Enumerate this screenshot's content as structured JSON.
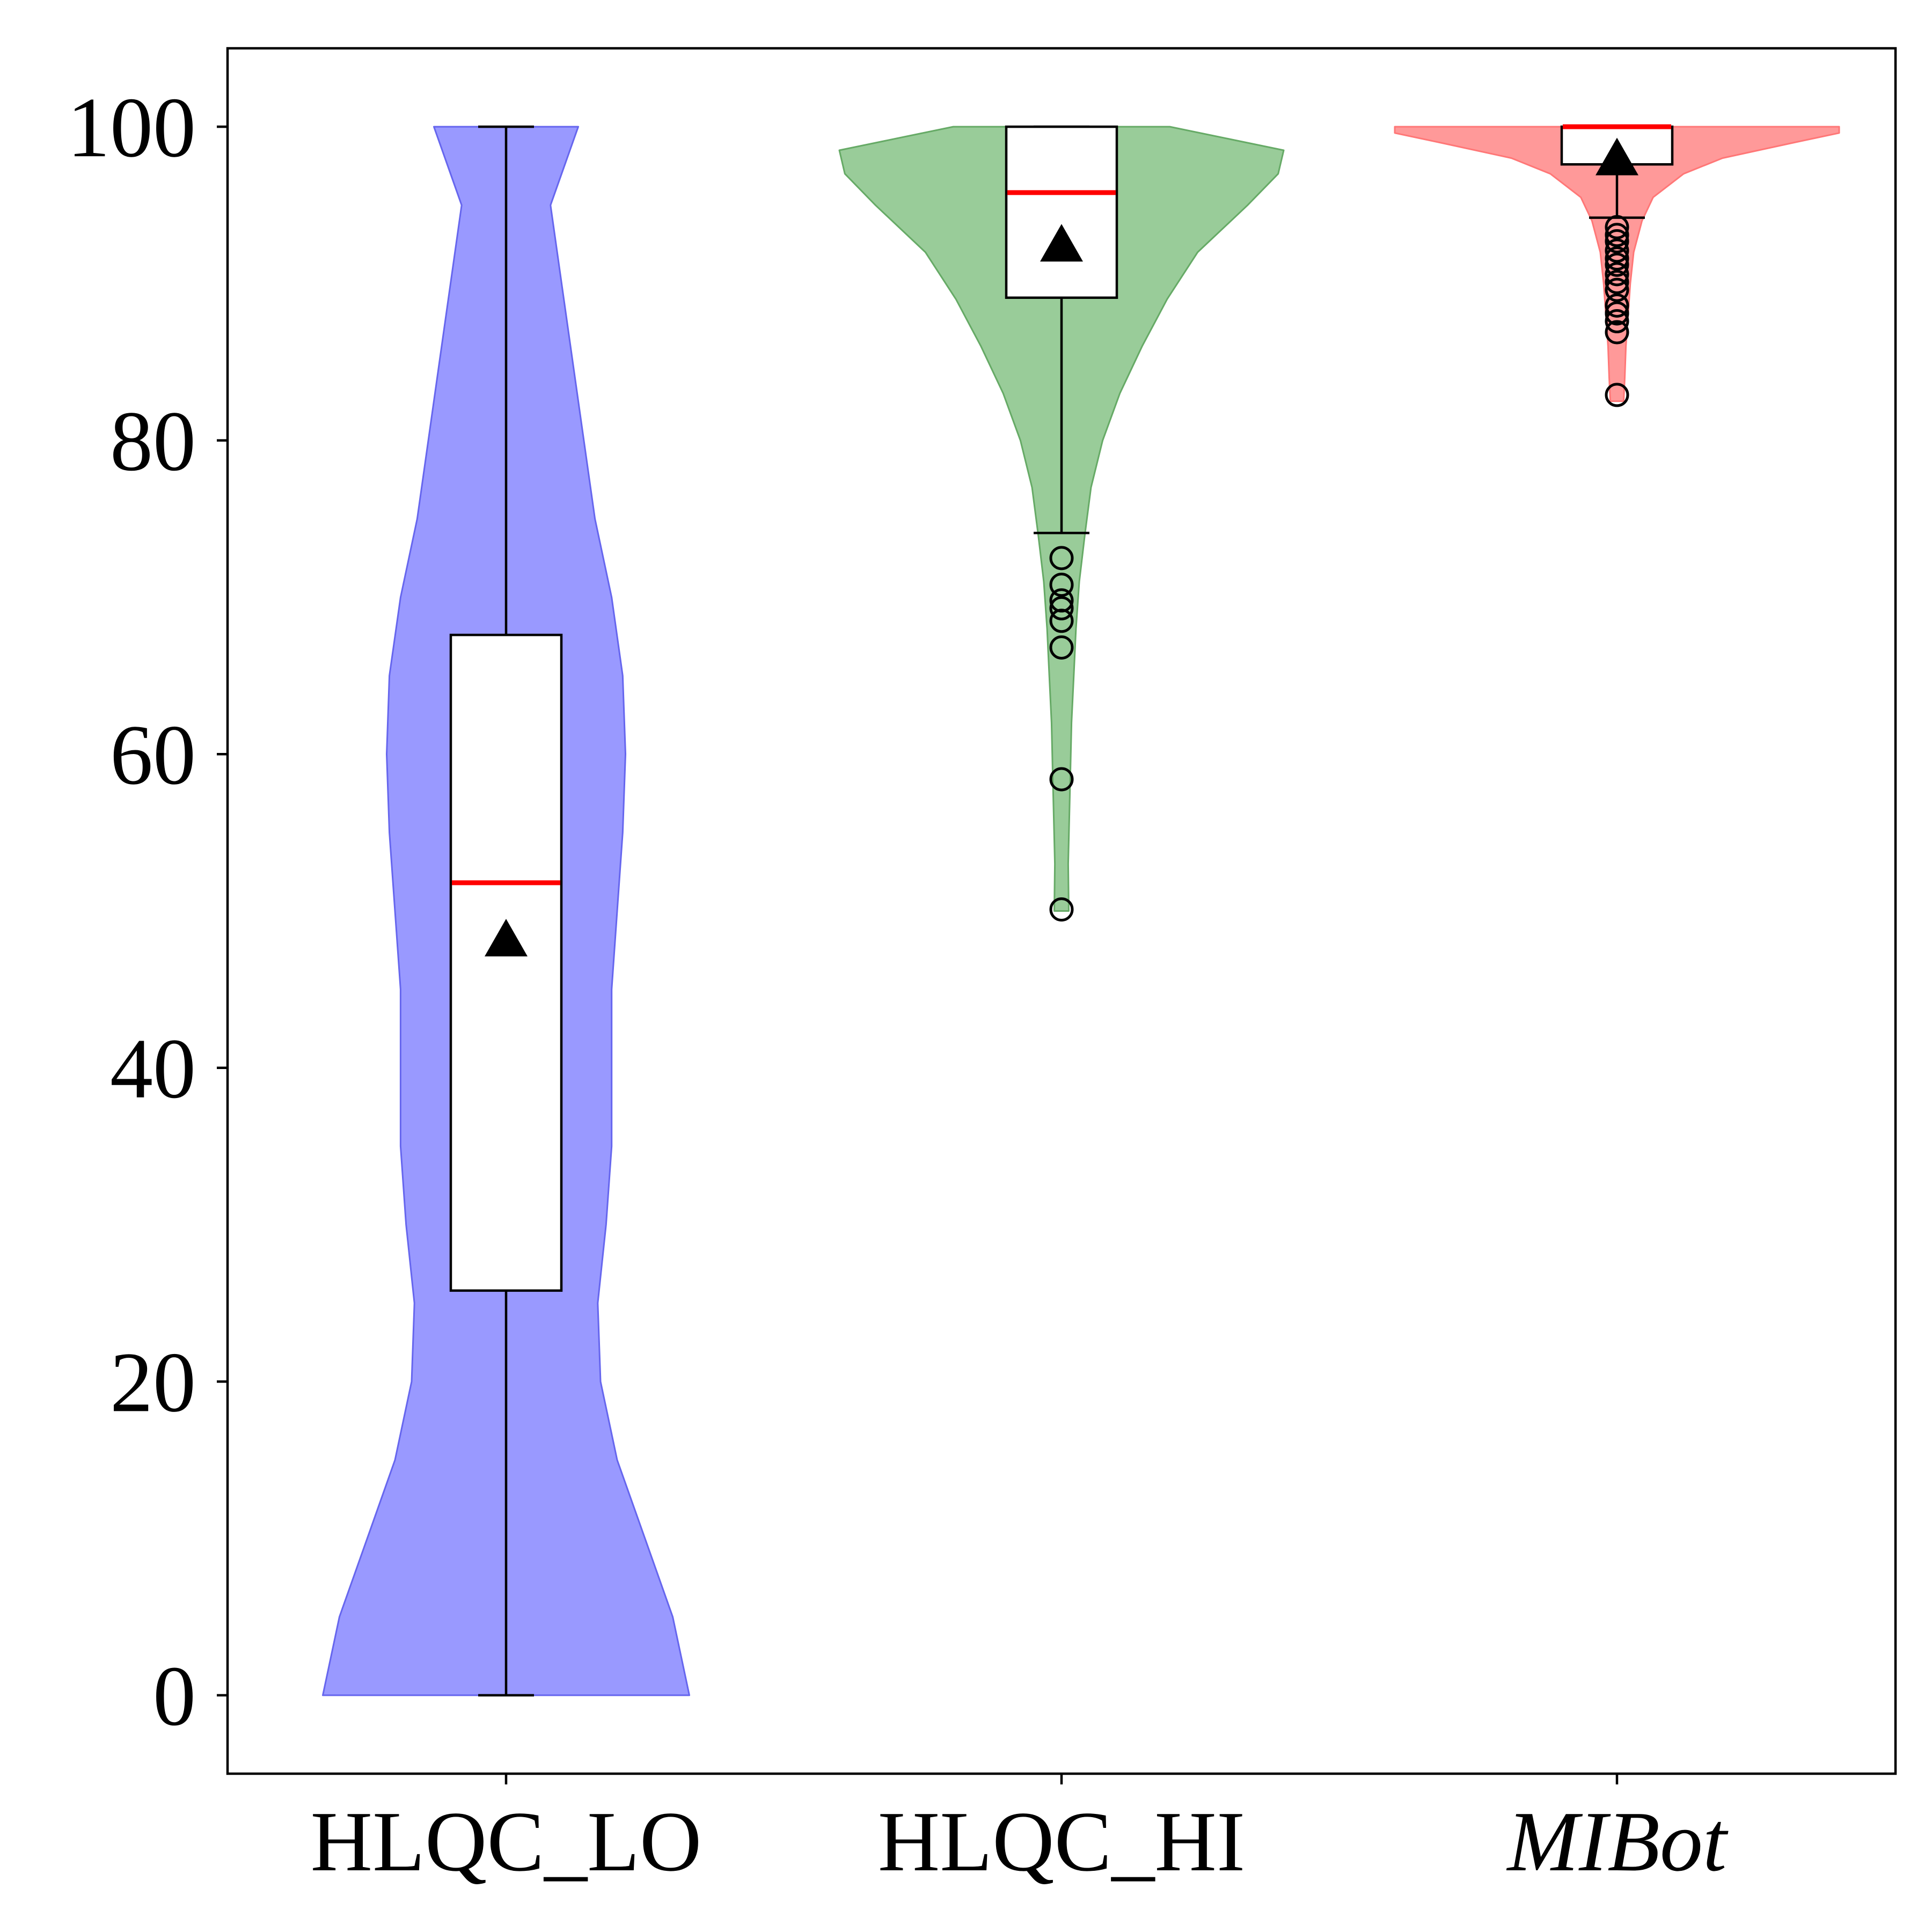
{
  "chart_data": {
    "type": "violin",
    "title": "",
    "xlabel": "",
    "ylabel": "",
    "ylim": [
      -5,
      105
    ],
    "yticks": [
      0,
      20,
      40,
      60,
      80,
      100
    ],
    "ytick_labels": [
      "0",
      "20",
      "40",
      "60",
      "80",
      "100"
    ],
    "grid": false,
    "legend": "none",
    "categories": [
      "HLQC_LO",
      "HLQC_HI",
      "MIBot"
    ],
    "italic_categories": [
      "MIBot"
    ],
    "series": [
      {
        "category": "HLQC_LO",
        "color": "#9999ff",
        "edge_color": "#6666ee",
        "box": {
          "whisker_low": 0,
          "q1": 25.8,
          "median": 51.8,
          "q3": 67.6,
          "whisker_high": 100,
          "mean": 48.2
        },
        "outliers": [],
        "density": [
          {
            "y": 0,
            "w": 0.33
          },
          {
            "y": 5,
            "w": 0.3
          },
          {
            "y": 10,
            "w": 0.25
          },
          {
            "y": 15,
            "w": 0.2
          },
          {
            "y": 20,
            "w": 0.17
          },
          {
            "y": 25,
            "w": 0.165
          },
          {
            "y": 30,
            "w": 0.18
          },
          {
            "y": 35,
            "w": 0.19
          },
          {
            "y": 40,
            "w": 0.19
          },
          {
            "y": 45,
            "w": 0.19
          },
          {
            "y": 50,
            "w": 0.2
          },
          {
            "y": 55,
            "w": 0.21
          },
          {
            "y": 60,
            "w": 0.215
          },
          {
            "y": 65,
            "w": 0.21
          },
          {
            "y": 70,
            "w": 0.19
          },
          {
            "y": 75,
            "w": 0.16
          },
          {
            "y": 80,
            "w": 0.14
          },
          {
            "y": 85,
            "w": 0.12
          },
          {
            "y": 90,
            "w": 0.1
          },
          {
            "y": 95,
            "w": 0.08
          },
          {
            "y": 100,
            "w": 0.13
          }
        ]
      },
      {
        "category": "HLQC_HI",
        "color": "#99cc99",
        "edge_color": "#66aa66",
        "box": {
          "whisker_low": 74.1,
          "q1": 89.1,
          "median": 95.8,
          "q3": 100,
          "whisker_high": 100,
          "mean": 92.5
        },
        "outliers": [
          72.5,
          70.8,
          69.8,
          69.3,
          68.5,
          66.8,
          58.4,
          50.1
        ],
        "density": [
          {
            "y": 50,
            "w": 0.013
          },
          {
            "y": 53,
            "w": 0.012
          },
          {
            "y": 56,
            "w": 0.014
          },
          {
            "y": 59,
            "w": 0.016
          },
          {
            "y": 62,
            "w": 0.018
          },
          {
            "y": 65,
            "w": 0.022
          },
          {
            "y": 68,
            "w": 0.026
          },
          {
            "y": 71,
            "w": 0.032
          },
          {
            "y": 74,
            "w": 0.042
          },
          {
            "y": 77,
            "w": 0.053
          },
          {
            "y": 80,
            "w": 0.074
          },
          {
            "y": 83,
            "w": 0.105
          },
          {
            "y": 86,
            "w": 0.145
          },
          {
            "y": 89,
            "w": 0.19
          },
          {
            "y": 92,
            "w": 0.245
          },
          {
            "y": 95,
            "w": 0.335
          },
          {
            "y": 97,
            "w": 0.39
          },
          {
            "y": 98.5,
            "w": 0.4
          },
          {
            "y": 100,
            "w": 0.195
          }
        ]
      },
      {
        "category": "MIBot",
        "color": "#ff9999",
        "edge_color": "#ff7777",
        "box": {
          "whisker_low": 94.2,
          "q1": 97.6,
          "median": 100,
          "q3": 100,
          "whisker_high": 100,
          "mean": 98.0
        },
        "outliers": [
          93.6,
          93.1,
          92.7,
          92.1,
          91.6,
          91.2,
          90.6,
          90.1,
          89.6,
          88.6,
          88.1,
          87.6,
          86.9,
          82.9
        ],
        "density": [
          {
            "y": 82.5,
            "w": 0.012
          },
          {
            "y": 84,
            "w": 0.014
          },
          {
            "y": 86,
            "w": 0.016
          },
          {
            "y": 88,
            "w": 0.02
          },
          {
            "y": 90,
            "w": 0.024
          },
          {
            "y": 92,
            "w": 0.03
          },
          {
            "y": 94,
            "w": 0.045
          },
          {
            "y": 95.5,
            "w": 0.065
          },
          {
            "y": 97,
            "w": 0.12
          },
          {
            "y": 98,
            "w": 0.19
          },
          {
            "y": 99,
            "w": 0.32
          },
          {
            "y": 99.6,
            "w": 0.4
          },
          {
            "y": 100,
            "w": 0.4
          }
        ]
      }
    ]
  }
}
